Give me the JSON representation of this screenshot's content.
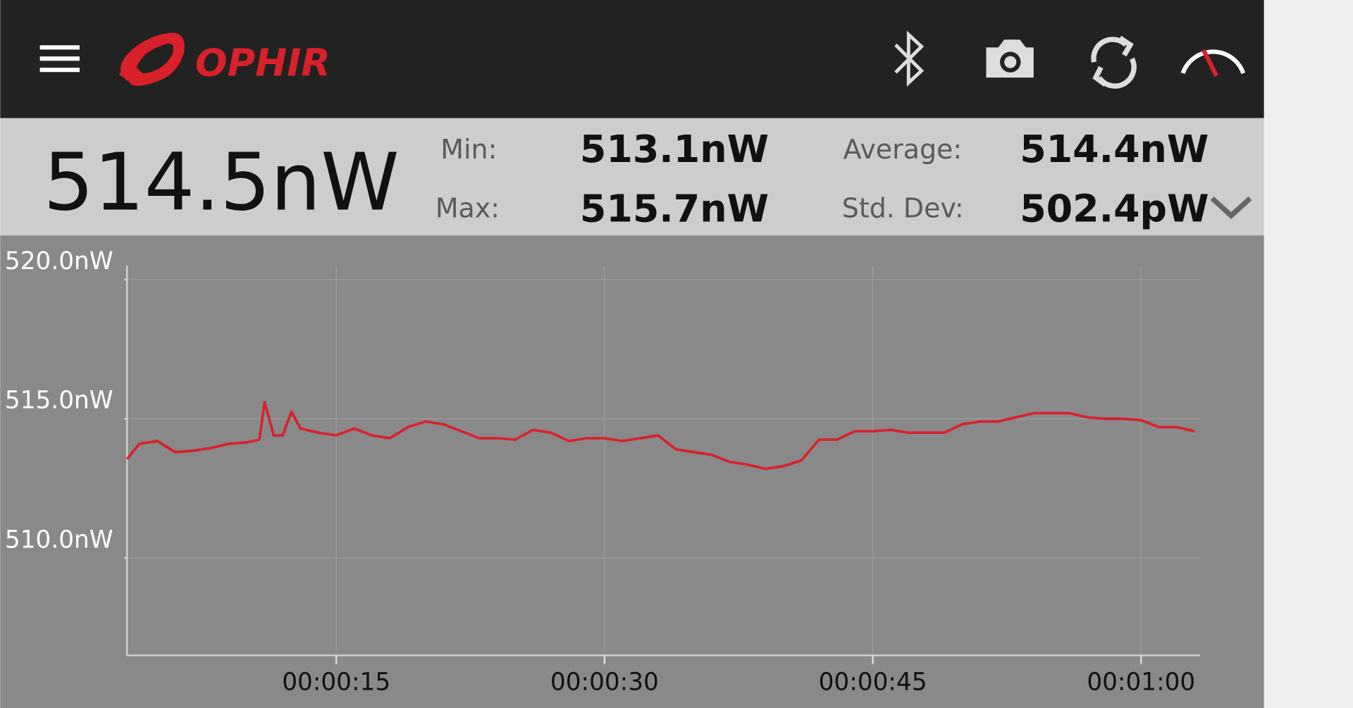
{
  "header": {
    "brand": "OPHIR"
  },
  "readout": {
    "value": "514.5nW"
  },
  "stats": {
    "min_label": "Min:",
    "min": "513.1nW",
    "max_label": "Max:",
    "max": "515.7nW",
    "average_label": "Average:",
    "average": "514.4nW",
    "std_label": "Std. Dev:",
    "std": "502.4pW"
  },
  "chart_data": {
    "type": "line",
    "x": [
      3.3,
      4,
      5,
      6,
      7,
      8,
      9,
      10,
      10.7,
      11,
      11.5,
      12,
      12.5,
      13,
      14,
      15,
      16,
      17,
      18,
      19,
      20,
      21,
      22,
      23,
      24,
      25,
      26,
      27,
      28,
      29,
      30,
      31,
      32,
      33,
      34,
      35,
      36,
      37,
      38,
      39,
      40,
      41,
      42,
      43,
      44,
      45,
      46,
      47,
      48,
      49,
      50,
      51,
      52,
      53,
      54,
      55,
      56,
      57,
      58,
      59,
      60,
      61,
      62,
      63
    ],
    "series": [
      {
        "color": "#d9212b",
        "values": [
          513.55,
          514.1,
          514.2,
          513.8,
          513.85,
          513.95,
          514.1,
          514.15,
          514.25,
          515.6,
          514.4,
          514.4,
          515.25,
          514.65,
          514.5,
          514.4,
          514.65,
          514.4,
          514.3,
          514.7,
          514.9,
          514.8,
          514.55,
          514.3,
          514.3,
          514.25,
          514.6,
          514.5,
          514.2,
          514.3,
          514.3,
          514.2,
          514.3,
          514.4,
          513.9,
          513.8,
          513.7,
          513.45,
          513.35,
          513.2,
          513.3,
          513.5,
          514.25,
          514.25,
          514.55,
          514.55,
          514.6,
          514.5,
          514.5,
          514.5,
          514.8,
          514.9,
          514.9,
          515.05,
          515.2,
          515.2,
          515.2,
          515.05,
          515.0,
          515.0,
          514.95,
          514.7,
          514.7,
          514.55
        ]
      }
    ],
    "xlim": [
      3.3,
      63.3
    ],
    "ylim": [
      506.5,
      520.5
    ],
    "xticks": [
      {
        "value": 15,
        "label": "00:00:15"
      },
      {
        "value": 30,
        "label": "00:00:30"
      },
      {
        "value": 45,
        "label": "00:00:45"
      },
      {
        "value": 60,
        "label": "00:01:00"
      }
    ],
    "yticks": [
      {
        "value": 510,
        "label": "510.0nW"
      },
      {
        "value": 515,
        "label": "515.0nW"
      },
      {
        "value": 520,
        "label": "520.0nW"
      }
    ],
    "grid": true
  }
}
